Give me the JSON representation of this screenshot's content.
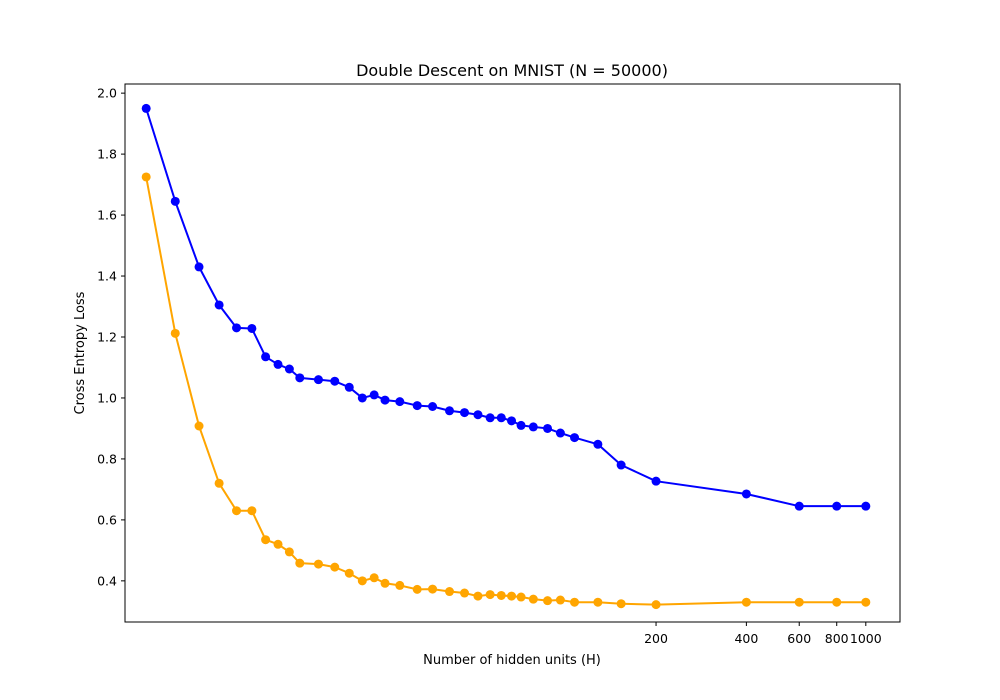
{
  "chart_data": {
    "type": "line",
    "title": "Double Descent on MNIST (N = 50000)",
    "xlabel": "Number of hidden units (H)",
    "ylabel": "Cross Entropy Loss",
    "x_scale": "log",
    "xlim": [
      3.4,
      1300
    ],
    "ylim": [
      0.265,
      2.03
    ],
    "x_ticks": [
      200,
      400,
      600,
      800,
      1000
    ],
    "x_tick_labels": [
      "200",
      "400",
      "600",
      "800",
      "1000"
    ],
    "y_ticks": [
      0.4,
      0.6,
      0.8,
      1.0,
      1.2,
      1.4,
      1.6,
      1.8,
      2.0
    ],
    "y_tick_labels": [
      "0.4",
      "0.6",
      "0.8",
      "1.0",
      "1.2",
      "1.4",
      "1.6",
      "1.8",
      "2.0"
    ],
    "grid": false,
    "x": [
      4,
      5,
      6,
      7,
      8,
      9,
      10,
      11,
      12,
      13,
      15,
      17,
      19,
      21,
      23,
      25,
      28,
      32,
      36,
      41,
      46,
      51,
      56,
      61,
      66,
      71,
      78,
      87,
      96,
      107,
      128,
      153,
      200,
      400,
      600,
      800,
      1000
    ],
    "series": [
      {
        "color": "#0000ff",
        "values": [
          1.95,
          1.645,
          1.43,
          1.305,
          1.23,
          1.228,
          1.135,
          1.11,
          1.095,
          1.066,
          1.06,
          1.055,
          1.035,
          1.0,
          1.01,
          0.993,
          0.988,
          0.975,
          0.972,
          0.958,
          0.952,
          0.945,
          0.935,
          0.935,
          0.925,
          0.91,
          0.905,
          0.9,
          0.885,
          0.87,
          0.848,
          0.78,
          0.727,
          0.685,
          0.645,
          0.645,
          0.645
        ]
      },
      {
        "color": "#ffa500",
        "values": [
          1.725,
          1.212,
          0.908,
          0.72,
          0.63,
          0.63,
          0.535,
          0.52,
          0.495,
          0.458,
          0.455,
          0.445,
          0.425,
          0.4,
          0.41,
          0.392,
          0.385,
          0.372,
          0.373,
          0.365,
          0.36,
          0.35,
          0.355,
          0.352,
          0.35,
          0.347,
          0.34,
          0.335,
          0.337,
          0.33,
          0.33,
          0.325,
          0.322,
          0.33,
          0.33,
          0.33,
          0.33
        ]
      }
    ]
  }
}
